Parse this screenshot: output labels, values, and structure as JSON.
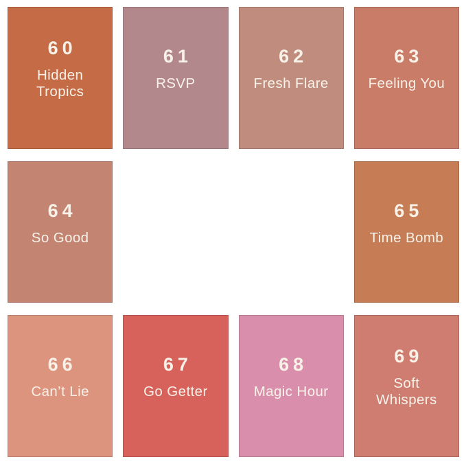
{
  "page": {
    "background": "#ffffff",
    "text_color": "#F7F1E8"
  },
  "cells": [
    {
      "number": "60",
      "name": "Hidden Tropics",
      "color": "#C56C47"
    },
    {
      "number": "61",
      "name": "RSVP",
      "color": "#B3888D"
    },
    {
      "number": "62",
      "name": "Fresh Flare",
      "color": "#BF8C7D"
    },
    {
      "number": "63",
      "name": "Feeling You",
      "color": "#C97C67"
    },
    {
      "number": "64",
      "name": "So Good",
      "color": "#C38472"
    },
    {},
    {},
    {
      "number": "65",
      "name": "Time Bomb",
      "color": "#C67C55"
    },
    {
      "number": "66",
      "name": "Can’t Lie",
      "color": "#DD947E"
    },
    {
      "number": "67",
      "name": "Go Getter",
      "color": "#D6625B"
    },
    {
      "number": "68",
      "name": "Magic Hour",
      "color": "#D98FAB"
    },
    {
      "number": "69",
      "name": "Soft Whispers",
      "color": "#CF7D70"
    }
  ]
}
